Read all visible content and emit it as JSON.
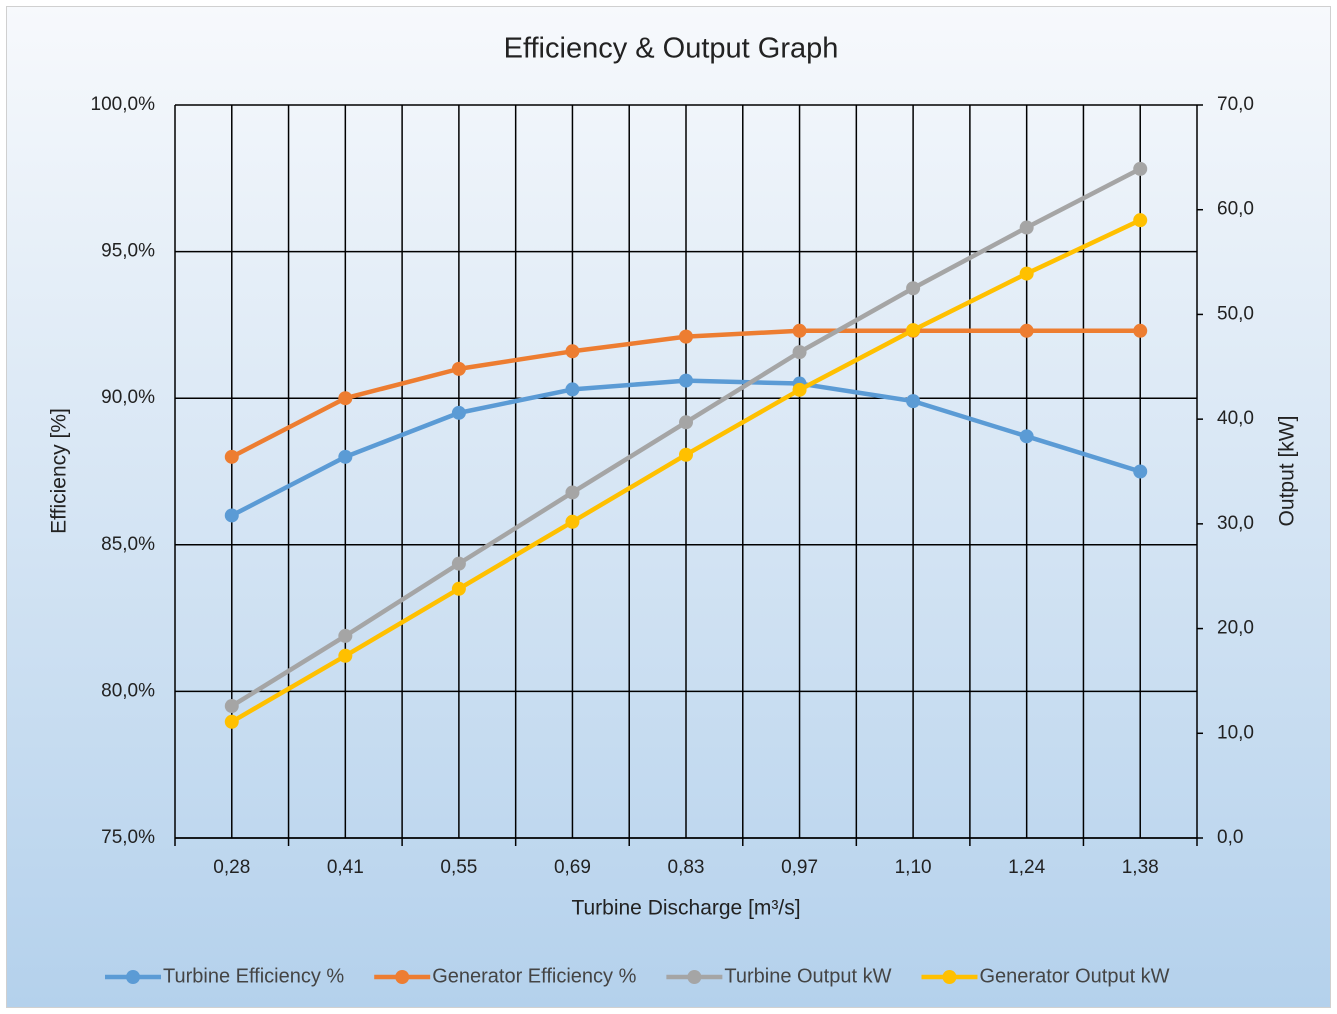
{
  "chart_data": {
    "type": "line",
    "title": "Efficiency & Output Graph",
    "x_label": "Turbine Discharge [m³/s]",
    "y_label": "Efficiency [%]",
    "y2_label": "Output [kW]",
    "categories": [
      "0,28",
      "0,41",
      "0,55",
      "0,69",
      "0,83",
      "0,97",
      "1,10",
      "1,24",
      "1,38"
    ],
    "ylim": [
      75,
      100
    ],
    "yticks": [
      {
        "value": 75,
        "label": "75,0%"
      },
      {
        "value": 80,
        "label": "80,0%"
      },
      {
        "value": 85,
        "label": "85,0%"
      },
      {
        "value": 90,
        "label": "90,0%"
      },
      {
        "value": 95,
        "label": "95,0%"
      },
      {
        "value": 100,
        "label": "100,0%"
      }
    ],
    "y2lim": [
      0,
      70
    ],
    "y2ticks": [
      {
        "value": 0,
        "label": "0,0"
      },
      {
        "value": 10,
        "label": "10,0"
      },
      {
        "value": 20,
        "label": "20,0"
      },
      {
        "value": 30,
        "label": "30,0"
      },
      {
        "value": 40,
        "label": "40,0"
      },
      {
        "value": 50,
        "label": "50,0"
      },
      {
        "value": 60,
        "label": "60,0"
      },
      {
        "value": 70,
        "label": "70,0"
      }
    ],
    "grid": true,
    "legend": "bottom",
    "series": [
      {
        "name": "Turbine Efficiency %",
        "color": "#5b9bd5",
        "values": [
          86.0,
          88.0,
          89.5,
          90.3,
          90.6,
          90.5,
          89.9,
          88.7,
          87.5
        ]
      },
      {
        "name": "Generator Efficiency %",
        "color": "#ed7d31",
        "values": [
          88.0,
          90.0,
          91.0,
          91.6,
          92.1,
          92.3,
          92.3,
          92.3,
          92.3
        ]
      },
      {
        "name": "Turbine Output kW",
        "color": "#a5a5a5",
        "axis": "y2",
        "values": [
          12.6,
          19.3,
          26.2,
          33.0,
          39.7,
          46.4,
          52.5,
          58.3,
          63.9
        ]
      },
      {
        "name": "Generator Output kW",
        "color": "#ffc000",
        "axis": "y2",
        "values": [
          11.1,
          17.4,
          23.8,
          30.2,
          36.6,
          42.8,
          48.5,
          53.9,
          59.0
        ]
      }
    ]
  }
}
